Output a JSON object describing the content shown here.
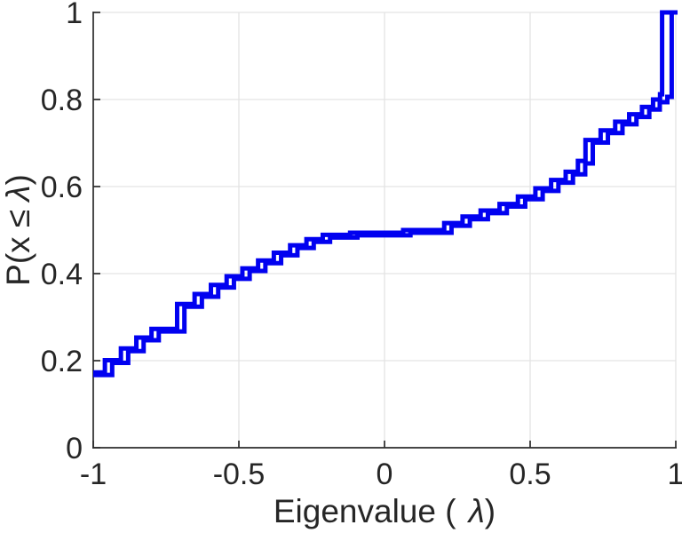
{
  "chart_data": {
    "type": "line",
    "subtype": "ecdf-step",
    "title": "",
    "xlabel": {
      "prefix": "Eigenvalue (",
      "lambda": "λ",
      "suffix": ")"
    },
    "ylabel": {
      "prefix": "P(x ≤",
      "lambda": "λ",
      "suffix": ")"
    },
    "xlim": [
      -1,
      1
    ],
    "ylim": [
      0,
      1
    ],
    "xticks": [
      {
        "value": -1,
        "label": "-1"
      },
      {
        "value": -0.5,
        "label": "-0.5"
      },
      {
        "value": 0,
        "label": "0"
      },
      {
        "value": 0.5,
        "label": "0.5"
      },
      {
        "value": 1,
        "label": "1"
      }
    ],
    "yticks": [
      {
        "value": 0,
        "label": "0"
      },
      {
        "value": 0.2,
        "label": "0.2"
      },
      {
        "value": 0.4,
        "label": "0.4"
      },
      {
        "value": 0.6,
        "label": "0.6"
      },
      {
        "value": 0.8,
        "label": "0.8"
      },
      {
        "value": 1,
        "label": "1"
      }
    ],
    "grid": true,
    "legend": false,
    "colors": {
      "line": "#0101f0",
      "axis": "#2b2b2b",
      "grid": "#e3e3e3",
      "background": "#ffffff"
    },
    "line_width": 5,
    "series": [
      {
        "name": "ecdf-step-curve-1",
        "start": [
          -1,
          0.173
        ],
        "jumps": [
          [
            -0.96,
            0.201
          ],
          [
            -0.905,
            0.228
          ],
          [
            -0.852,
            0.253
          ],
          [
            -0.8,
            0.273
          ],
          [
            -0.712,
            0.33
          ],
          [
            -0.652,
            0.353
          ],
          [
            -0.596,
            0.374
          ],
          [
            -0.542,
            0.394
          ],
          [
            -0.488,
            0.412
          ],
          [
            -0.434,
            0.43
          ],
          [
            -0.38,
            0.448
          ],
          [
            -0.324,
            0.465
          ],
          [
            -0.268,
            0.479
          ],
          [
            -0.212,
            0.489
          ],
          [
            -0.118,
            0.494
          ],
          [
            0.064,
            0.5
          ],
          [
            0.205,
            0.516
          ],
          [
            0.268,
            0.531
          ],
          [
            0.33,
            0.545
          ],
          [
            0.395,
            0.56
          ],
          [
            0.458,
            0.577
          ],
          [
            0.518,
            0.596
          ],
          [
            0.572,
            0.615
          ],
          [
            0.622,
            0.634
          ],
          [
            0.664,
            0.659
          ],
          [
            0.69,
            0.707
          ],
          [
            0.742,
            0.729
          ],
          [
            0.792,
            0.749
          ],
          [
            0.84,
            0.766
          ],
          [
            0.884,
            0.783
          ],
          [
            0.922,
            0.8
          ],
          [
            0.946,
            0.812
          ],
          [
            0.953,
            1.0
          ]
        ]
      },
      {
        "name": "ecdf-step-curve-2",
        "start": [
          -1,
          0.167
        ],
        "jumps": [
          [
            -0.935,
            0.195
          ],
          [
            -0.88,
            0.222
          ],
          [
            -0.827,
            0.247
          ],
          [
            -0.775,
            0.267
          ],
          [
            -0.687,
            0.324
          ],
          [
            -0.627,
            0.347
          ],
          [
            -0.571,
            0.368
          ],
          [
            -0.517,
            0.388
          ],
          [
            -0.463,
            0.406
          ],
          [
            -0.409,
            0.424
          ],
          [
            -0.355,
            0.442
          ],
          [
            -0.299,
            0.459
          ],
          [
            -0.243,
            0.473
          ],
          [
            -0.187,
            0.483
          ],
          [
            -0.093,
            0.488
          ],
          [
            0.089,
            0.494
          ],
          [
            0.23,
            0.51
          ],
          [
            0.293,
            0.525
          ],
          [
            0.355,
            0.539
          ],
          [
            0.42,
            0.554
          ],
          [
            0.483,
            0.571
          ],
          [
            0.543,
            0.59
          ],
          [
            0.597,
            0.609
          ],
          [
            0.647,
            0.628
          ],
          [
            0.689,
            0.653
          ],
          [
            0.715,
            0.701
          ],
          [
            0.767,
            0.723
          ],
          [
            0.817,
            0.743
          ],
          [
            0.865,
            0.76
          ],
          [
            0.909,
            0.777
          ],
          [
            0.945,
            0.794
          ],
          [
            0.971,
            0.806
          ],
          [
            0.986,
            1.0
          ]
        ]
      }
    ]
  }
}
